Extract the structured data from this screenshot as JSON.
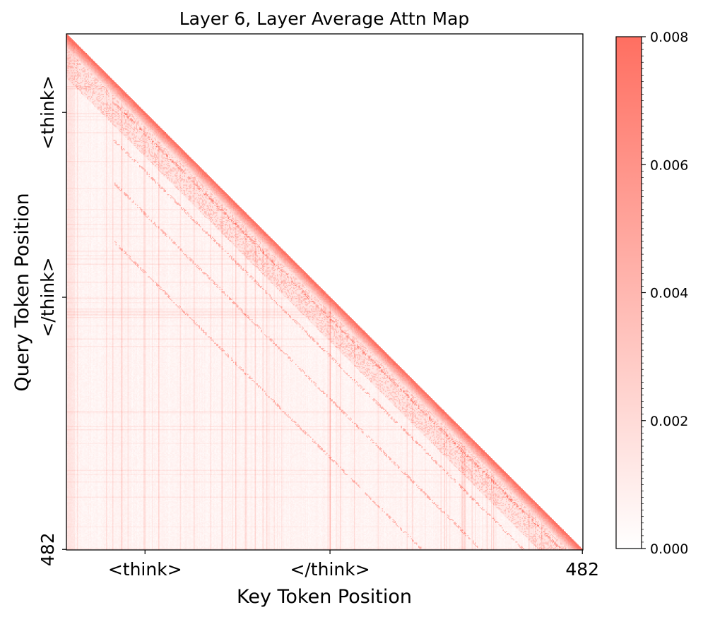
{
  "chart_data": {
    "type": "heatmap",
    "title": "Layer 6, Layer Average Attn Map",
    "xlabel": "Key Token Position",
    "ylabel": "Query Token Position",
    "n_tokens": 483,
    "x_ticks": [
      {
        "pos": 73,
        "label": "<think>"
      },
      {
        "pos": 246,
        "label": "</think>"
      },
      {
        "pos": 482,
        "label": "482"
      }
    ],
    "y_ticks": [
      {
        "pos": 73,
        "label": "<think>"
      },
      {
        "pos": 246,
        "label": "</think>"
      },
      {
        "pos": 482,
        "label": "482"
      }
    ],
    "mask": "lower-triangular (causal)",
    "colormap": {
      "low": "#ffffff",
      "high": "#ff6f61"
    },
    "colorbar": {
      "range": [
        0.0,
        0.008
      ],
      "ticks": [
        {
          "value": 0.0,
          "label": "0.000"
        },
        {
          "value": 0.002,
          "label": "0.002"
        },
        {
          "value": 0.004,
          "label": "0.004"
        },
        {
          "value": 0.006,
          "label": "0.006"
        },
        {
          "value": 0.008,
          "label": "0.008"
        }
      ]
    },
    "features": {
      "diagonal_value": 0.008,
      "diagonal_band_width": 14,
      "background_value": 0.0004,
      "think_open_column": 73,
      "think_close_column": 246,
      "secondary_diagonal_offsets": [
        20,
        55,
        95,
        150
      ]
    }
  }
}
